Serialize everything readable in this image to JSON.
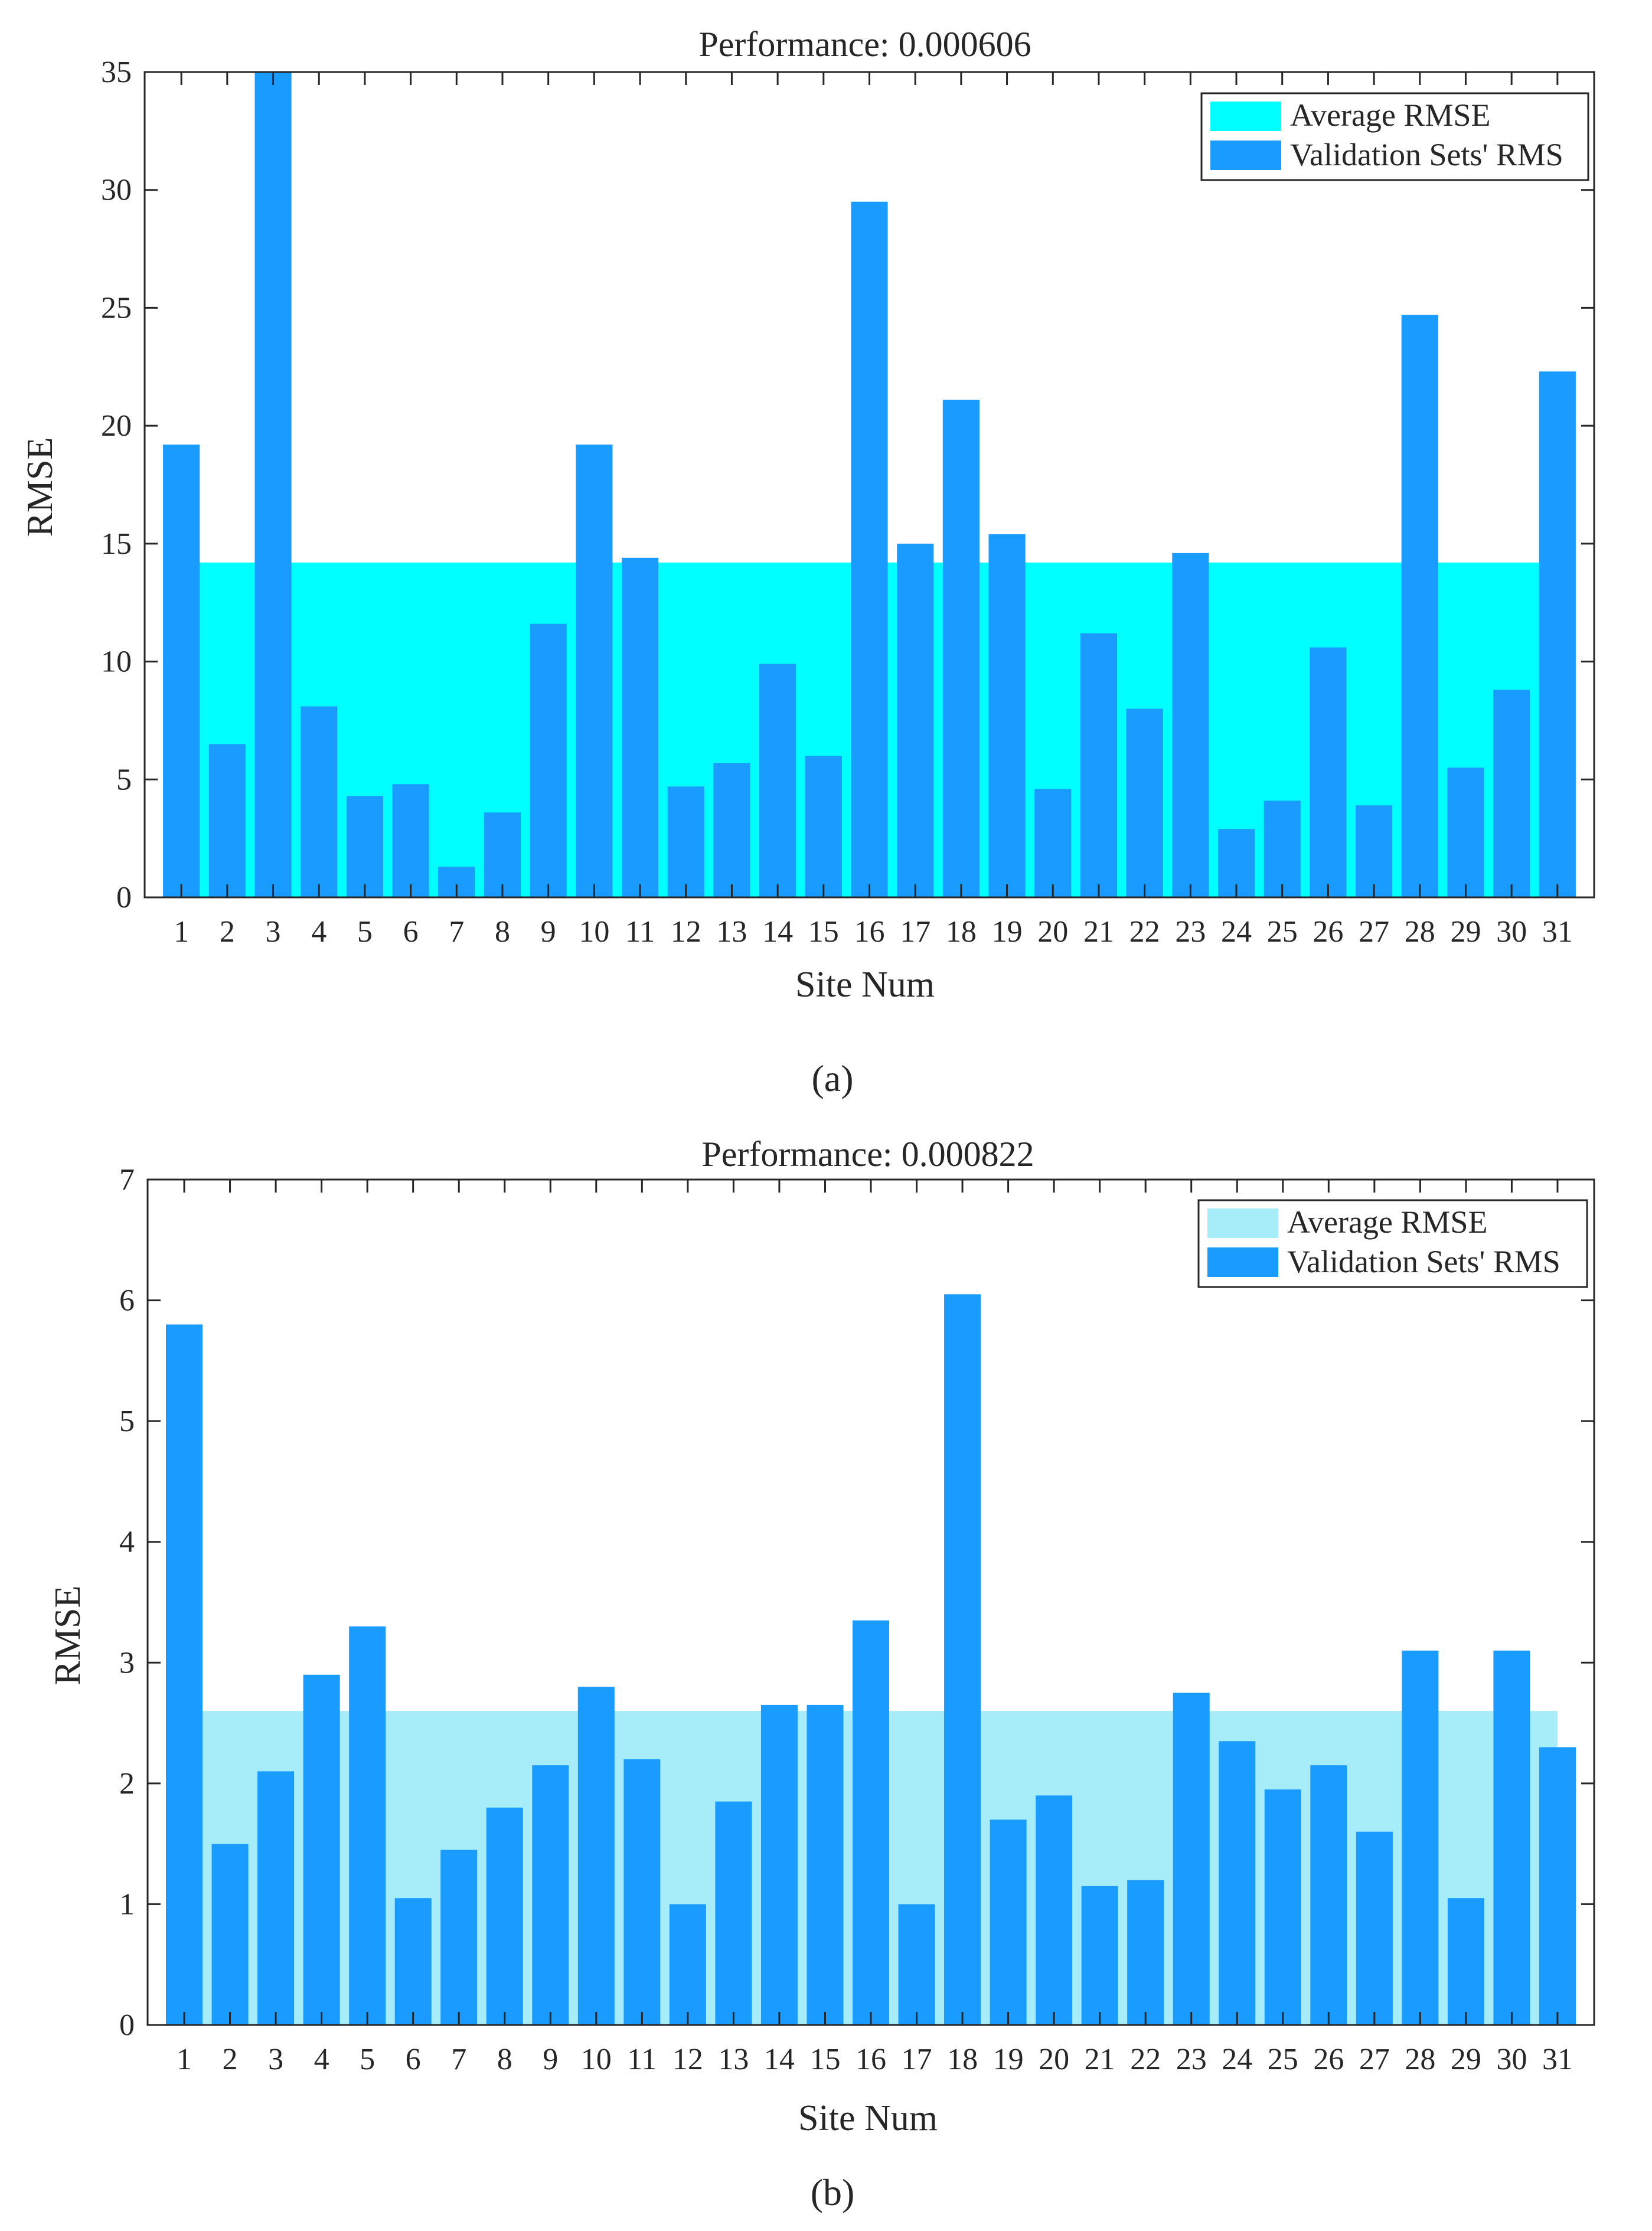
{
  "chart_data": [
    {
      "type": "bar",
      "panel_label": "(a)",
      "title": "Performance: 0.000606",
      "xlabel": "Site Num",
      "ylabel": "RMSE",
      "ylim": [
        0,
        35
      ],
      "yticks": [
        0,
        5,
        10,
        15,
        20,
        25,
        30,
        35
      ],
      "categories": [
        "1",
        "2",
        "3",
        "4",
        "5",
        "6",
        "7",
        "8",
        "9",
        "10",
        "11",
        "12",
        "13",
        "14",
        "15",
        "16",
        "17",
        "18",
        "19",
        "20",
        "21",
        "22",
        "23",
        "24",
        "25",
        "26",
        "27",
        "28",
        "29",
        "30",
        "31"
      ],
      "average_rmse": 14.2,
      "series": [
        {
          "name": "Validation Sets' RMS",
          "values": [
            19.2,
            6.5,
            35,
            8.1,
            4.3,
            4.8,
            1.3,
            3.6,
            11.6,
            19.2,
            14.4,
            4.7,
            5.7,
            9.9,
            6.0,
            29.5,
            15.0,
            21.1,
            15.4,
            4.6,
            11.2,
            8.0,
            14.6,
            2.9,
            4.1,
            10.6,
            3.9,
            24.7,
            5.5,
            8.8,
            22.3
          ]
        }
      ],
      "legend": [
        "Average RMSE",
        "Validation Sets' RMS"
      ],
      "legend_position": "top-right",
      "colors": {
        "average": "#00ffff",
        "bars": "#1a9bff",
        "axis": "#262626"
      }
    },
    {
      "type": "bar",
      "panel_label": "(b)",
      "title": "Performance: 0.000822",
      "xlabel": "Site Num",
      "ylabel": "RMSE",
      "ylim": [
        0,
        7
      ],
      "yticks": [
        0,
        1,
        2,
        3,
        4,
        5,
        6,
        7
      ],
      "categories": [
        "1",
        "2",
        "3",
        "4",
        "5",
        "6",
        "7",
        "8",
        "9",
        "10",
        "11",
        "12",
        "13",
        "14",
        "15",
        "16",
        "17",
        "18",
        "19",
        "20",
        "21",
        "22",
        "23",
        "24",
        "25",
        "26",
        "27",
        "28",
        "29",
        "30",
        "31"
      ],
      "average_rmse": 2.6,
      "series": [
        {
          "name": "Validation Sets' RMS",
          "values": [
            5.8,
            1.5,
            2.1,
            2.9,
            3.3,
            1.05,
            1.45,
            1.8,
            2.15,
            2.8,
            2.2,
            1.0,
            1.85,
            2.65,
            2.65,
            3.35,
            1.0,
            6.05,
            1.7,
            1.9,
            1.15,
            1.2,
            2.75,
            2.35,
            1.95,
            2.15,
            1.6,
            3.1,
            1.05,
            3.1,
            2.3
          ]
        }
      ],
      "legend": [
        "Average RMSE",
        "Validation Sets' RMS"
      ],
      "legend_position": "top-right",
      "colors": {
        "average": "#a6ecf9",
        "bars": "#1a9bff",
        "axis": "#262626"
      }
    }
  ]
}
